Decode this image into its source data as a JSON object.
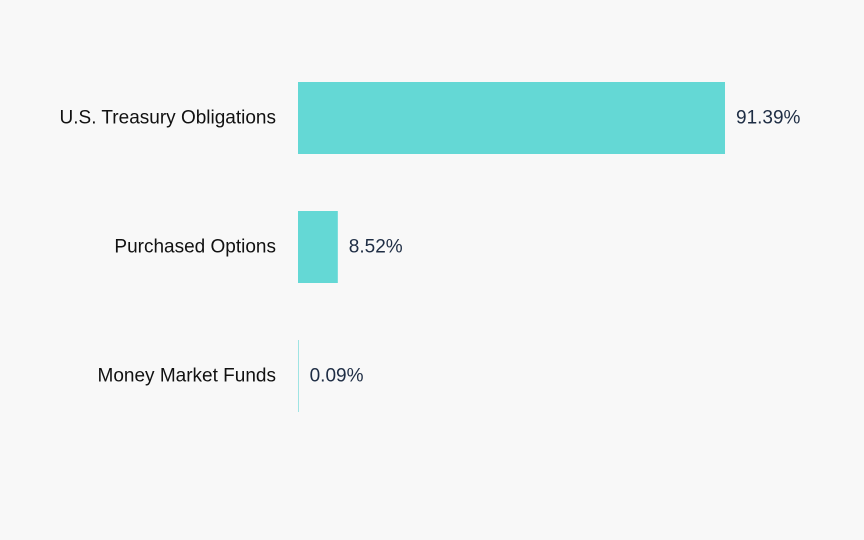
{
  "chart_data": {
    "type": "bar",
    "orientation": "horizontal",
    "categories": [
      "U.S. Treasury Obligations",
      "Purchased Options",
      "Money Market Funds"
    ],
    "values": [
      91.39,
      8.52,
      0.09
    ],
    "value_labels": [
      "91.39%",
      "8.52%",
      "0.09%"
    ],
    "unit": "%",
    "xlim": [
      0,
      100
    ],
    "grid": false,
    "legend": "none",
    "colors": {
      "bar": "#64d8d5",
      "background": "#f8f8f8",
      "category_text": "#111111",
      "value_text": "#1e2d44"
    }
  }
}
